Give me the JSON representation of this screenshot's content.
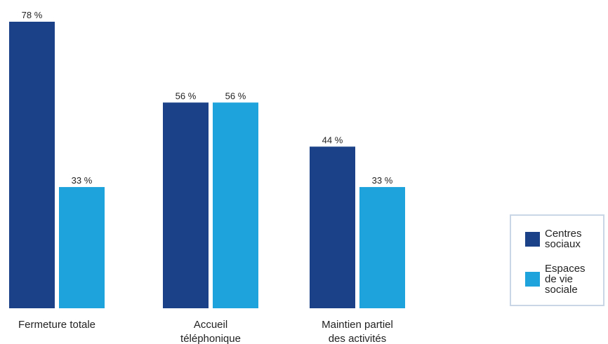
{
  "chart_data": {
    "type": "bar",
    "categories": [
      "Fermeture totale",
      "Accueil téléphonique",
      "Maintien partiel des activités"
    ],
    "category_lines": [
      [
        "Fermeture totale"
      ],
      [
        "Accueil",
        "téléphonique"
      ],
      [
        "Maintien partiel",
        "des activités"
      ]
    ],
    "series": [
      {
        "name": "Centres sociaux",
        "values": [
          78,
          56,
          44
        ],
        "labels": [
          "78 %",
          "56 %",
          "44 %"
        ],
        "color": "#1b4289"
      },
      {
        "name": "Espaces de vie sociale",
        "values": [
          33,
          56,
          33
        ],
        "labels": [
          "33 %",
          "56 %",
          "33 %"
        ],
        "color": "#1ea3dc"
      }
    ],
    "ylim": [
      0,
      78
    ],
    "grid": false,
    "legend_position": "bottom-right"
  },
  "legend": {
    "items": [
      {
        "label": "Centres sociaux",
        "color": "#1b4289"
      },
      {
        "label": "Espaces de vie sociale",
        "color": "#1ea3dc"
      }
    ]
  }
}
